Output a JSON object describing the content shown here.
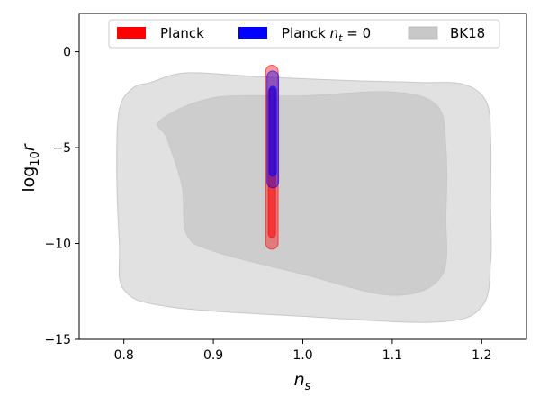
{
  "chart_data": {
    "type": "contour",
    "xlabel_base": "n",
    "xlabel_sub": "s",
    "ylabel_pre": "log",
    "ylabel_sub": "10",
    "ylabel_post": "r",
    "xlim": [
      0.75,
      1.25
    ],
    "ylim": [
      -15,
      2
    ],
    "xticks": [
      0.8,
      0.9,
      1.0,
      1.1,
      1.2
    ],
    "xtick_labels": [
      "0.8",
      "0.9",
      "1.0",
      "1.1",
      "1.2"
    ],
    "yticks": [
      0,
      -5,
      -10,
      -15
    ],
    "ytick_labels": [
      "0",
      "−5",
      "−10",
      "−15"
    ],
    "grid": false,
    "legend_position": "top",
    "legend": [
      {
        "label": "Planck",
        "color": "#ff0000"
      },
      {
        "label_pre": "Planck ",
        "label_var": "n",
        "label_sub": "t",
        "label_post": " = 0",
        "color": "#0000ff"
      },
      {
        "label": "BK18",
        "color": "#c8c8c8"
      }
    ],
    "series": [
      {
        "name": "BK18",
        "color": "#c8c8c8",
        "contours": [
          {
            "level": "outer",
            "points": [
              [
                0.83,
                -1.6
              ],
              [
                0.87,
                -1.1
              ],
              [
                0.95,
                -1.3
              ],
              [
                1.05,
                -1.5
              ],
              [
                1.13,
                -1.6
              ],
              [
                1.18,
                -1.7
              ],
              [
                1.205,
                -2.6
              ],
              [
                1.21,
                -4.5
              ],
              [
                1.21,
                -8
              ],
              [
                1.21,
                -11
              ],
              [
                1.2,
                -13.3
              ],
              [
                1.15,
                -14.1
              ],
              [
                1.0,
                -13.8
              ],
              [
                0.85,
                -13.3
              ],
              [
                0.8,
                -12.4
              ],
              [
                0.795,
                -10
              ],
              [
                0.792,
                -6
              ],
              [
                0.795,
                -3
              ],
              [
                0.81,
                -1.9
              ]
            ]
          },
          {
            "level": "inner",
            "points": [
              [
                0.84,
                -3.6
              ],
              [
                0.9,
                -2.4
              ],
              [
                1.0,
                -2.3
              ],
              [
                1.1,
                -2.1
              ],
              [
                1.15,
                -2.8
              ],
              [
                1.16,
                -5
              ],
              [
                1.16,
                -8.5
              ],
              [
                1.155,
                -11.7
              ],
              [
                1.1,
                -12.7
              ],
              [
                1.0,
                -11.6
              ],
              [
                0.9,
                -10.4
              ],
              [
                0.87,
                -9.5
              ],
              [
                0.865,
                -7
              ],
              [
                0.848,
                -4.5
              ]
            ]
          }
        ]
      },
      {
        "name": "Planck",
        "color": "#ff0000",
        "contours": [
          {
            "level": "outer",
            "center": 0.9655,
            "top": -0.7,
            "bottom": -10.3,
            "halfwidth": 0.007
          },
          {
            "level": "inner",
            "center": 0.9655,
            "top": -1.9,
            "bottom": -9.7,
            "halfwidth": 0.004
          }
        ]
      },
      {
        "name": "Planck n_t = 0",
        "color": "#0000ff",
        "contours": [
          {
            "level": "outer",
            "center": 0.9665,
            "top": -1.0,
            "bottom": -7.1,
            "halfwidth": 0.0065
          },
          {
            "level": "inner",
            "center": 0.9665,
            "top": -1.8,
            "bottom": -6.5,
            "halfwidth": 0.004
          }
        ]
      }
    ]
  }
}
